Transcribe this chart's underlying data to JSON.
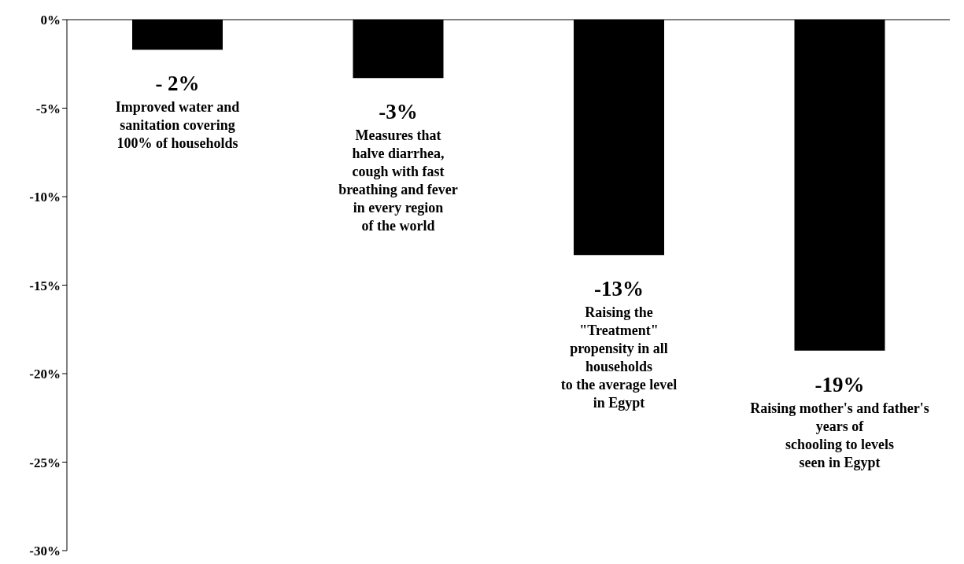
{
  "chart_data": {
    "type": "bar",
    "categories": [
      null,
      null,
      null,
      null
    ],
    "values": [
      -1.7,
      -3.3,
      -13.3,
      -18.7
    ],
    "color": "#000000",
    "value_labels": [
      "- 2%",
      "-3%",
      "-13%",
      "-19%"
    ],
    "annotations": [
      "Improved water and\nsanitation covering\n100% of households",
      "Measures that\nhalve diarrhea,\ncough with fast\nbreathing and fever\nin every region\nof the world",
      "Raising the\n\"Treatment\"\npropensity in all\nhouseholds\nto the average level\nin Egypt",
      "Raising mother's and father's\nyears of\nschooling to levels\nseen in Egypt"
    ],
    "ylim": [
      -30,
      0
    ],
    "yticks": [
      {
        "value": 0,
        "label": "0%"
      },
      {
        "value": -5,
        "label": "-5%"
      },
      {
        "value": -10,
        "label": "-10%"
      },
      {
        "value": -15,
        "label": "-15%"
      },
      {
        "value": -20,
        "label": "-20%"
      },
      {
        "value": -25,
        "label": "-25%"
      },
      {
        "value": -30,
        "label": "-30%"
      }
    ],
    "grid": false,
    "legend": false
  }
}
